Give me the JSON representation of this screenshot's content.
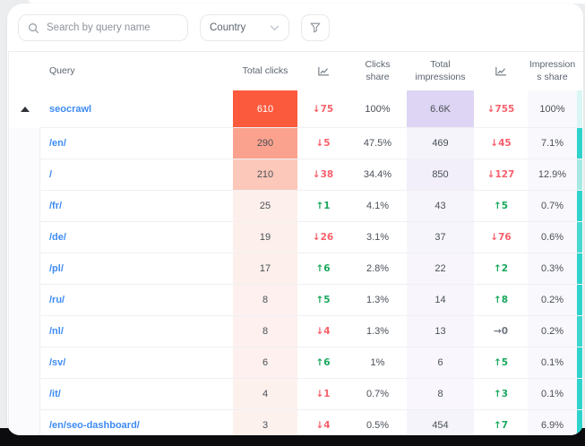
{
  "toolbar": {
    "search_placeholder": "Search by query name",
    "country_label": "Country"
  },
  "table": {
    "headers": {
      "query": "Query",
      "total_clicks": "Total clicks",
      "clicks_share": "Clicks\nshare",
      "total_impressions": "Total\nimpressions",
      "impressions_share": "Impression\ns share"
    },
    "rows": [
      {
        "query": "seocrawl",
        "parent": true,
        "clicks": "610",
        "clicks_bg": "#fb5a3d",
        "clicks_color": "#ffffff",
        "trend1": "↓75",
        "trend1_color": "#f7606b",
        "share1": "100%",
        "impressions": "6.6K",
        "impr_bg": "#ddd5f3",
        "trend2": "↓755",
        "trend2_color": "#f7606b",
        "share2": "100%",
        "strip": "#d9f6f4"
      },
      {
        "query": "/en/",
        "parent": false,
        "clicks": "290",
        "clicks_bg": "#fba28e",
        "clicks_color": "#4a5058",
        "trend1": "↓5",
        "trend1_color": "#f7606b",
        "share1": "47.5%",
        "impressions": "469",
        "impr_bg": "#f6f4fb",
        "trend2": "↓45",
        "trend2_color": "#f7606b",
        "share2": "7.1%",
        "strip": "#2ed3cb"
      },
      {
        "query": "/",
        "parent": false,
        "clicks": "210",
        "clicks_bg": "#fcc8ba",
        "clicks_color": "#4a5058",
        "trend1": "↓38",
        "trend1_color": "#f7606b",
        "share1": "34.4%",
        "impressions": "850",
        "impr_bg": "#f2effa",
        "trend2": "↓127",
        "trend2_color": "#f7606b",
        "share2": "12.9%",
        "strip": "#a6e9e3"
      },
      {
        "query": "/fr/",
        "parent": false,
        "clicks": "25",
        "clicks_bg": "#fdefeb",
        "clicks_color": "#4a5058",
        "trend1": "↑1",
        "trend1_color": "#18a75c",
        "share1": "4.1%",
        "impressions": "43",
        "impr_bg": "#f7f5fc",
        "trend2": "↑5",
        "trend2_color": "#18a75c",
        "share2": "0.7%",
        "strip": "#2ed3cb"
      },
      {
        "query": "/de/",
        "parent": false,
        "clicks": "19",
        "clicks_bg": "#fdefeb",
        "clicks_color": "#4a5058",
        "trend1": "↓26",
        "trend1_color": "#f7606b",
        "share1": "3.1%",
        "impressions": "37",
        "impr_bg": "#f7f5fc",
        "trend2": "↓76",
        "trend2_color": "#f7606b",
        "share2": "0.6%",
        "strip": "#49d8d0"
      },
      {
        "query": "/pl/",
        "parent": false,
        "clicks": "17",
        "clicks_bg": "#fdefeb",
        "clicks_color": "#4a5058",
        "trend1": "↑6",
        "trend1_color": "#18a75c",
        "share1": "2.8%",
        "impressions": "22",
        "impr_bg": "#f8f6fc",
        "trend2": "↑2",
        "trend2_color": "#18a75c",
        "share2": "0.3%",
        "strip": "#2ed3cb"
      },
      {
        "query": "/ru/",
        "parent": false,
        "clicks": "8",
        "clicks_bg": "#fdf0ee",
        "clicks_color": "#4a5058",
        "trend1": "↑5",
        "trend1_color": "#18a75c",
        "share1": "1.3%",
        "impressions": "14",
        "impr_bg": "#f8f6fc",
        "trend2": "↑8",
        "trend2_color": "#18a75c",
        "share2": "0.2%",
        "strip": "#2ed3cb"
      },
      {
        "query": "/nl/",
        "parent": false,
        "clicks": "8",
        "clicks_bg": "#fdf0ee",
        "clicks_color": "#4a5058",
        "trend1": "↓4",
        "trend1_color": "#f7606b",
        "share1": "1.3%",
        "impressions": "13",
        "impr_bg": "#f8f6fc",
        "trend2": "→0",
        "trend2_color": "#6f7680",
        "share2": "0.2%",
        "strip": "#3cd6ce"
      },
      {
        "query": "/sv/",
        "parent": false,
        "clicks": "6",
        "clicks_bg": "#fdf0ee",
        "clicks_color": "#4a5058",
        "trend1": "↑6",
        "trend1_color": "#18a75c",
        "share1": "1%",
        "impressions": "6",
        "impr_bg": "#f9f7fd",
        "trend2": "↑5",
        "trend2_color": "#18a75c",
        "share2": "0.1%",
        "strip": "#2ed3cb"
      },
      {
        "query": "/it/",
        "parent": false,
        "clicks": "4",
        "clicks_bg": "#fdf1ee",
        "clicks_color": "#4a5058",
        "trend1": "↓1",
        "trend1_color": "#f7606b",
        "share1": "0.7%",
        "impressions": "8",
        "impr_bg": "#f9f7fd",
        "trend2": "↑3",
        "trend2_color": "#18a75c",
        "share2": "0.1%",
        "strip": "#2ed3cb"
      },
      {
        "query": "/en/seo-dashboard/",
        "parent": false,
        "clicks": "3",
        "clicks_bg": "#fdf1ee",
        "clicks_color": "#4a5058",
        "trend1": "↓4",
        "trend1_color": "#f7606b",
        "share1": "0.5%",
        "impressions": "454",
        "impr_bg": "#f6f4fb",
        "trend2": "↑7",
        "trend2_color": "#18a75c",
        "share2": "6.9%",
        "strip": "#2ed3cb"
      }
    ]
  },
  "colors": {
    "accent_orange": "#fb5a3d",
    "accent_purple": "#ddd5f3",
    "accent_teal": "#2ed3cb",
    "trend_down": "#f7606b",
    "trend_up": "#18a75c",
    "trend_flat": "#6f7680",
    "query_link": "#3e8bf3"
  }
}
